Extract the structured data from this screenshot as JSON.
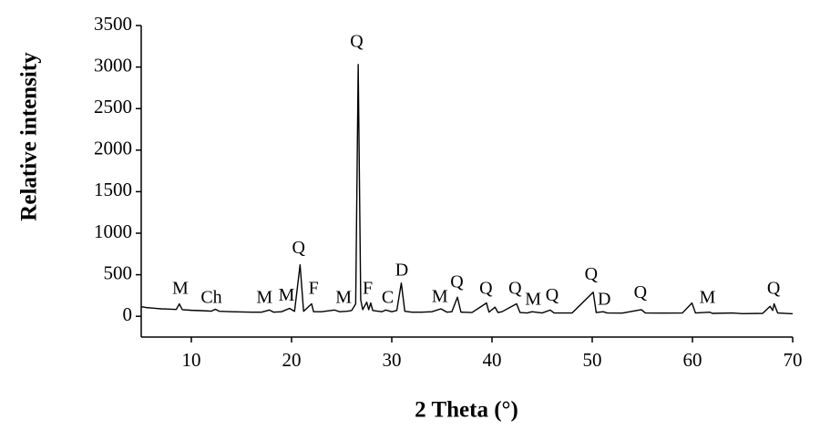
{
  "chart_data": {
    "type": "line",
    "x_label": "2 Theta (°)",
    "y_label": "Relative intensity",
    "xlim": [
      5,
      70
    ],
    "ylim": [
      -250,
      3500
    ],
    "xticks": [
      10,
      20,
      30,
      40,
      50,
      60,
      70
    ],
    "yticks": [
      0,
      500,
      1000,
      1500,
      2000,
      2500,
      3000,
      3500
    ],
    "series": [
      {
        "color": "#000000",
        "x": [
          5,
          5.5,
          6,
          6.5,
          7,
          7.5,
          8,
          8.5,
          8.8,
          9.1,
          10,
          11,
          12,
          12.4,
          12.8,
          14,
          15,
          16,
          17,
          17.8,
          18.2,
          19,
          19.8,
          20.3,
          20.85,
          21.2,
          22,
          22.2,
          23,
          24.3,
          24.8,
          25.5,
          26,
          26.4,
          26.65,
          26.9,
          27.1,
          27.5,
          27.7,
          27.9,
          28.1,
          29,
          29.4,
          30,
          30.5,
          30.95,
          31.3,
          32,
          33,
          34,
          34.9,
          35.5,
          36,
          36.55,
          36.9,
          38,
          39.45,
          39.7,
          40.3,
          40.6,
          41,
          42.45,
          42.8,
          43.5,
          44,
          45,
          45.8,
          46.2,
          48,
          50.1,
          50.4,
          51.1,
          51.5,
          53,
          54.9,
          55.3,
          57,
          59,
          59.95,
          60.3,
          61.7,
          62,
          64,
          65,
          67,
          67.75,
          68,
          68.15,
          68.5,
          70
        ],
        "values": [
          115,
          105,
          100,
          95,
          90,
          88,
          85,
          82,
          150,
          80,
          72,
          68,
          62,
          85,
          60,
          55,
          52,
          50,
          50,
          75,
          50,
          55,
          95,
          60,
          620,
          60,
          150,
          55,
          55,
          75,
          55,
          60,
          70,
          150,
          3030,
          200,
          80,
          170,
          80,
          160,
          70,
          55,
          75,
          55,
          70,
          400,
          60,
          50,
          50,
          55,
          90,
          50,
          55,
          230,
          50,
          45,
          160,
          50,
          110,
          45,
          55,
          150,
          45,
          40,
          55,
          40,
          75,
          40,
          40,
          290,
          45,
          55,
          40,
          38,
          80,
          40,
          38,
          40,
          160,
          40,
          50,
          35,
          40,
          32,
          35,
          120,
          70,
          150,
          40,
          30
        ]
      }
    ],
    "annotations": [
      {
        "text": "M",
        "x": 8.9,
        "y": 320
      },
      {
        "text": "Ch",
        "x": 12.0,
        "y": 210
      },
      {
        "text": "M",
        "x": 17.3,
        "y": 210
      },
      {
        "text": "M",
        "x": 19.5,
        "y": 240
      },
      {
        "text": "Q",
        "x": 20.7,
        "y": 810
      },
      {
        "text": "F",
        "x": 22.2,
        "y": 320
      },
      {
        "text": "M",
        "x": 25.2,
        "y": 210
      },
      {
        "text": "Q",
        "x": 26.5,
        "y": 3290
      },
      {
        "text": "F",
        "x": 27.6,
        "y": 320
      },
      {
        "text": "C",
        "x": 29.6,
        "y": 210
      },
      {
        "text": "D",
        "x": 31.0,
        "y": 540
      },
      {
        "text": "M",
        "x": 34.8,
        "y": 220
      },
      {
        "text": "Q",
        "x": 36.5,
        "y": 400
      },
      {
        "text": "Q",
        "x": 39.4,
        "y": 320
      },
      {
        "text": "Q",
        "x": 42.3,
        "y": 320
      },
      {
        "text": "M",
        "x": 44.1,
        "y": 190
      },
      {
        "text": "Q",
        "x": 46.0,
        "y": 240
      },
      {
        "text": "Q",
        "x": 49.9,
        "y": 490
      },
      {
        "text": "D",
        "x": 51.2,
        "y": 190
      },
      {
        "text": "Q",
        "x": 54.8,
        "y": 270
      },
      {
        "text": "M",
        "x": 61.5,
        "y": 210
      },
      {
        "text": "Q",
        "x": 68.1,
        "y": 320
      }
    ]
  }
}
